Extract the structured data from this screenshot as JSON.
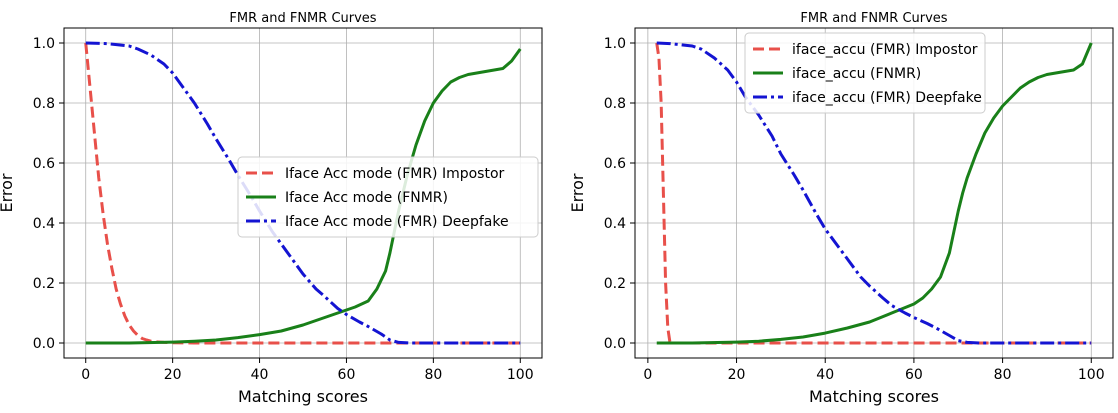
{
  "chart_data": [
    {
      "type": "line",
      "title": "FMR and FNMR Curves",
      "xlabel": "Matching scores",
      "ylabel": "Error",
      "xlim": [
        -5,
        105
      ],
      "ylim": [
        -0.05,
        1.05
      ],
      "xticks": [
        0,
        20,
        40,
        60,
        80,
        100
      ],
      "yticks": [
        0.0,
        0.2,
        0.4,
        0.6,
        0.8,
        1.0
      ],
      "grid": true,
      "legend_position": "center-right",
      "series": [
        {
          "name": "Iface Acc mode (FMR) Impostor",
          "color": "#e8504a",
          "style": "dashed",
          "x": [
            0,
            1,
            2,
            3,
            4,
            5,
            6,
            7,
            8,
            9,
            10,
            11,
            12,
            13,
            14,
            15,
            16,
            18,
            20,
            25,
            30,
            40,
            50,
            60,
            70,
            80,
            90,
            100
          ],
          "y": [
            1.0,
            0.85,
            0.7,
            0.55,
            0.43,
            0.33,
            0.25,
            0.18,
            0.13,
            0.09,
            0.06,
            0.04,
            0.025,
            0.015,
            0.01,
            0.006,
            0.004,
            0.002,
            0.001,
            0,
            0,
            0,
            0,
            0,
            0,
            0,
            0,
            0
          ]
        },
        {
          "name": "Iface Acc mode (FNMR)",
          "color": "#198019",
          "style": "solid",
          "x": [
            0,
            10,
            20,
            25,
            30,
            35,
            40,
            45,
            50,
            55,
            60,
            62,
            65,
            67,
            69,
            70,
            72,
            74,
            76,
            78,
            80,
            82,
            84,
            86,
            88,
            90,
            92,
            94,
            96,
            98,
            100
          ],
          "y": [
            0.0,
            0.0,
            0.003,
            0.006,
            0.01,
            0.018,
            0.028,
            0.04,
            0.06,
            0.085,
            0.11,
            0.12,
            0.14,
            0.18,
            0.24,
            0.3,
            0.44,
            0.56,
            0.66,
            0.74,
            0.8,
            0.84,
            0.87,
            0.885,
            0.895,
            0.9,
            0.905,
            0.91,
            0.915,
            0.94,
            0.98
          ]
        },
        {
          "name": "Iface Acc mode (FMR) Deepfake",
          "color": "#1414d2",
          "style": "dashdot",
          "x": [
            0,
            5,
            10,
            12,
            15,
            18,
            20,
            22,
            25,
            28,
            30,
            33,
            35,
            38,
            40,
            43,
            45,
            48,
            50,
            53,
            55,
            58,
            60,
            63,
            65,
            68,
            70,
            72,
            75,
            80,
            90,
            100
          ],
          "y": [
            1.0,
            0.998,
            0.99,
            0.98,
            0.96,
            0.93,
            0.9,
            0.86,
            0.8,
            0.73,
            0.68,
            0.61,
            0.56,
            0.49,
            0.44,
            0.37,
            0.33,
            0.27,
            0.23,
            0.18,
            0.155,
            0.115,
            0.095,
            0.07,
            0.055,
            0.03,
            0.01,
            0.002,
            0,
            0,
            0,
            0
          ]
        }
      ]
    },
    {
      "type": "line",
      "title": "FMR and FNMR Curves",
      "xlabel": "Matching scores",
      "ylabel": "Error",
      "xlim": [
        -2.9,
        104.9
      ],
      "ylim": [
        -0.05,
        1.05
      ],
      "xticks": [
        0,
        20,
        40,
        60,
        80,
        100
      ],
      "yticks": [
        0.0,
        0.2,
        0.4,
        0.6,
        0.8,
        1.0
      ],
      "grid": true,
      "legend_position": "top-center",
      "series": [
        {
          "name": "iface_accu (FMR) Impostor",
          "color": "#e8504a",
          "style": "dashed",
          "x": [
            2,
            2.5,
            3,
            3.5,
            4,
            4.5,
            5,
            10,
            20,
            40,
            60,
            80,
            100
          ],
          "y": [
            1.0,
            0.95,
            0.8,
            0.5,
            0.2,
            0.05,
            0.0,
            0,
            0,
            0,
            0,
            0,
            0
          ]
        },
        {
          "name": "iface_accu (FNMR)",
          "color": "#198019",
          "style": "solid",
          "x": [
            2,
            10,
            20,
            25,
            30,
            35,
            40,
            45,
            50,
            55,
            60,
            62,
            64,
            66,
            68,
            69,
            70,
            71,
            72,
            74,
            76,
            78,
            80,
            82,
            84,
            86,
            88,
            90,
            92,
            94,
            96,
            98,
            100
          ],
          "y": [
            0.0,
            0.0,
            0.003,
            0.006,
            0.012,
            0.02,
            0.033,
            0.05,
            0.07,
            0.1,
            0.13,
            0.15,
            0.18,
            0.22,
            0.3,
            0.37,
            0.44,
            0.5,
            0.55,
            0.63,
            0.7,
            0.75,
            0.79,
            0.82,
            0.85,
            0.87,
            0.885,
            0.895,
            0.9,
            0.905,
            0.91,
            0.93,
            1.0
          ]
        },
        {
          "name": "iface_accu (FMR) Deepfake",
          "color": "#1414d2",
          "style": "dashdot",
          "x": [
            2,
            5,
            10,
            12,
            15,
            18,
            20,
            22,
            25,
            28,
            30,
            33,
            35,
            38,
            40,
            43,
            45,
            48,
            50,
            53,
            55,
            58,
            60,
            63,
            65,
            68,
            70,
            72,
            75,
            80,
            90,
            100
          ],
          "y": [
            1.0,
            0.998,
            0.99,
            0.98,
            0.95,
            0.91,
            0.87,
            0.82,
            0.76,
            0.69,
            0.63,
            0.56,
            0.51,
            0.43,
            0.38,
            0.32,
            0.28,
            0.22,
            0.19,
            0.15,
            0.125,
            0.1,
            0.085,
            0.065,
            0.05,
            0.025,
            0.008,
            0.002,
            0,
            0,
            0,
            0
          ]
        }
      ]
    }
  ]
}
